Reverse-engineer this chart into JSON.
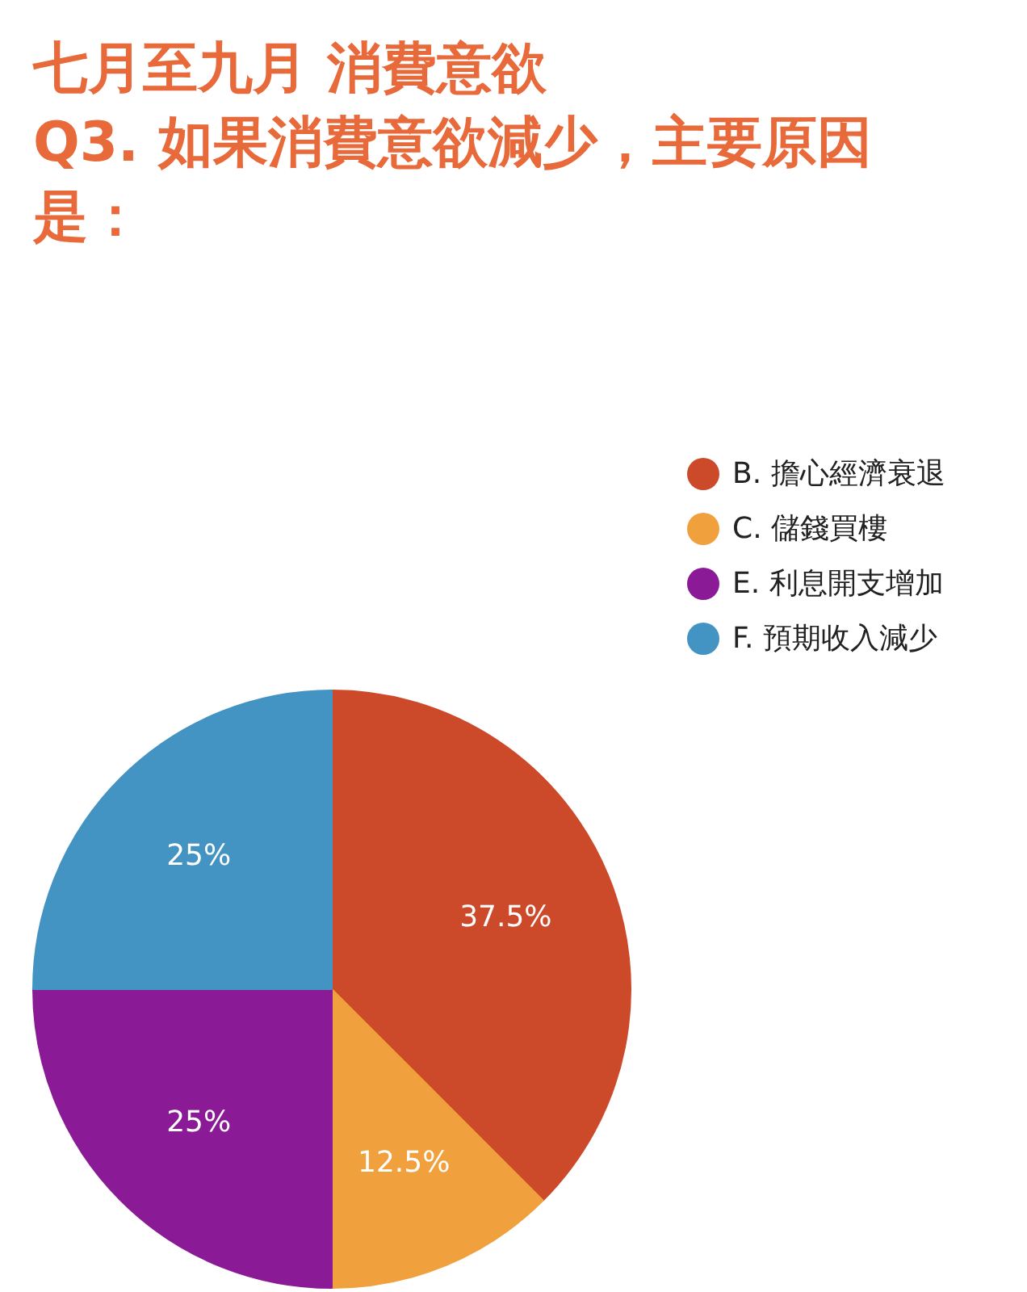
{
  "chart_data": {
    "type": "pie",
    "title": "七月至九月 消費意欲\nQ3. 如果消費意欲減少，主要原因是：",
    "categories": [
      "B. 擔心經濟衰退",
      "C. 儲錢買樓",
      "E. 利息開支增加",
      "F. 預期收入減少"
    ],
    "values": [
      37.5,
      12.5,
      25,
      25
    ],
    "colors": [
      "#cc4a2a",
      "#f0a03c",
      "#8b1a96",
      "#4393c3"
    ],
    "value_labels": [
      "37.5%",
      "12.5%",
      "25%",
      "25%"
    ],
    "legend": "top right"
  }
}
